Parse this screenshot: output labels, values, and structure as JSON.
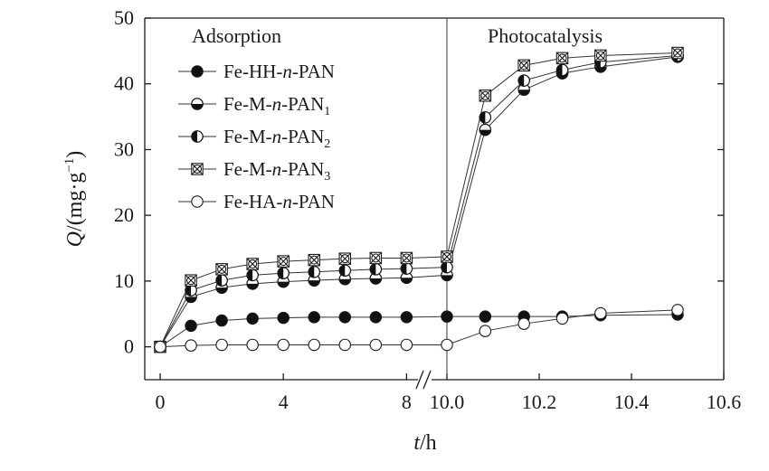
{
  "chart_data": {
    "type": "line",
    "title": "",
    "ylabel": "Q/(mg·g⁻¹)",
    "ylabel_var": "Q",
    "ylabel_unit": "/(mg·g",
    "ylabel_sup": "−1",
    "ylabel_close": ")",
    "xlabel": "t/h",
    "xlabel_var": "t",
    "xlabel_unit": "/h",
    "ylim": [
      -5,
      50
    ],
    "yticks": [
      0,
      10,
      20,
      30,
      40,
      50
    ],
    "x_segments": [
      {
        "name": "Adsorption",
        "xlim": [
          -0.5,
          8.4
        ],
        "ticks": [
          0,
          4,
          8
        ],
        "tick_labels": [
          "0",
          "4",
          "8"
        ]
      },
      {
        "name": "Photocatalysis",
        "xlim": [
          10.0,
          10.6
        ],
        "ticks": [
          10.0,
          10.2,
          10.4,
          10.6
        ],
        "tick_labels": [
          "10.0",
          "10.2",
          "10.4",
          "10.6"
        ]
      }
    ],
    "axis_break_mark": "//",
    "regions": [
      "Adsorption",
      "Photocatalysis"
    ],
    "legend_position": "upper-left",
    "series": [
      {
        "name": "Fe-HH-n-PAN",
        "name_parts": [
          "Fe-HH-",
          "n",
          "-PAN",
          ""
        ],
        "marker": "filled",
        "adsorption": {
          "x": [
            0,
            1,
            2,
            3,
            4,
            5,
            6,
            7,
            8
          ],
          "y": [
            0,
            3.2,
            4.0,
            4.3,
            4.4,
            4.5,
            4.5,
            4.5,
            4.5
          ]
        },
        "photocatalysis": {
          "x": [
            10.0,
            10.083,
            10.167,
            10.25,
            10.333,
            10.5
          ],
          "y": [
            4.6,
            4.6,
            4.6,
            4.6,
            4.8,
            4.9
          ]
        }
      },
      {
        "name": "Fe-M-n-PAN1",
        "name_parts": [
          "Fe-M-",
          "n",
          "-PAN",
          "1"
        ],
        "marker": "half-bottom",
        "adsorption": {
          "x": [
            0,
            1,
            2,
            3,
            4,
            5,
            6,
            7,
            8
          ],
          "y": [
            0,
            7.6,
            9.0,
            9.6,
            9.9,
            10.1,
            10.3,
            10.4,
            10.5
          ]
        },
        "photocatalysis": {
          "x": [
            10.0,
            10.083,
            10.167,
            10.25,
            10.333,
            10.5
          ],
          "y": [
            10.9,
            33.0,
            39.1,
            41.6,
            42.6,
            44.1
          ]
        }
      },
      {
        "name": "Fe-M-n-PAN2",
        "name_parts": [
          "Fe-M-",
          "n",
          "-PAN",
          "2"
        ],
        "marker": "half-left",
        "adsorption": {
          "x": [
            0,
            1,
            2,
            3,
            4,
            5,
            6,
            7,
            8
          ],
          "y": [
            0,
            8.6,
            10.1,
            10.9,
            11.2,
            11.4,
            11.6,
            11.8,
            11.9
          ]
        },
        "photocatalysis": {
          "x": [
            10.0,
            10.083,
            10.167,
            10.25,
            10.333,
            10.5
          ],
          "y": [
            12.1,
            34.9,
            40.5,
            42.1,
            43.3,
            44.3
          ]
        }
      },
      {
        "name": "Fe-M-n-PAN3",
        "name_parts": [
          "Fe-M-",
          "n",
          "-PAN",
          "3"
        ],
        "marker": "crossed",
        "adsorption": {
          "x": [
            0,
            1,
            2,
            3,
            4,
            5,
            6,
            7,
            8
          ],
          "y": [
            0,
            10.1,
            11.8,
            12.6,
            13.0,
            13.2,
            13.4,
            13.5,
            13.5
          ]
        },
        "photocatalysis": {
          "x": [
            10.0,
            10.083,
            10.167,
            10.25,
            10.333,
            10.5
          ],
          "y": [
            13.7,
            38.2,
            42.8,
            43.9,
            44.3,
            44.7
          ]
        }
      },
      {
        "name": "Fe-HA-n-PAN",
        "name_parts": [
          "Fe-HA-",
          "n",
          "-PAN",
          ""
        ],
        "marker": "open",
        "adsorption": {
          "x": [
            0,
            1,
            2,
            3,
            4,
            5,
            6,
            7,
            8
          ],
          "y": [
            0,
            0.2,
            0.3,
            0.3,
            0.3,
            0.3,
            0.3,
            0.3,
            0.3
          ]
        },
        "photocatalysis": {
          "x": [
            10.0,
            10.083,
            10.167,
            10.25,
            10.333,
            10.5
          ],
          "y": [
            0.3,
            2.4,
            3.5,
            4.3,
            5.1,
            5.6
          ]
        }
      }
    ]
  }
}
